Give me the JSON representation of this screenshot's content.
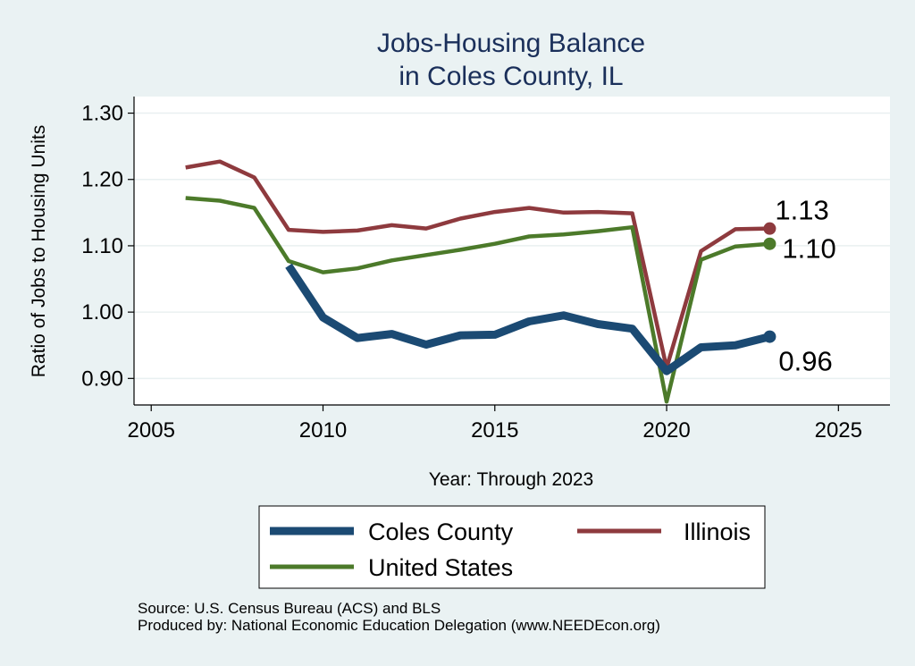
{
  "chart_data": {
    "type": "line",
    "title": [
      "Jobs-Housing Balance",
      "in Coles County, IL"
    ],
    "xlabel": "Year: Through 2023",
    "ylabel": "Ratio of Jobs to Housing Units",
    "xlim": [
      2004.5,
      2026.5
    ],
    "ylim": [
      0.86,
      1.325
    ],
    "xticks": [
      2005,
      2010,
      2015,
      2020,
      2025
    ],
    "yticks": [
      0.9,
      1.0,
      1.1,
      1.2,
      1.3
    ],
    "ytick_labels": [
      "0.90",
      "1.00",
      "1.10",
      "1.20",
      "1.30"
    ],
    "grid": true,
    "legend_position": "bottom",
    "series": [
      {
        "name": "Coles County",
        "color": "#1b4a73",
        "x": [
          2009,
          2010,
          2011,
          2012,
          2013,
          2014,
          2015,
          2016,
          2017,
          2018,
          2019,
          2020,
          2021,
          2022,
          2023
        ],
        "values": [
          1.07,
          0.992,
          0.961,
          0.967,
          0.951,
          0.965,
          0.966,
          0.986,
          0.995,
          0.982,
          0.975,
          0.911,
          0.947,
          0.95,
          0.963
        ],
        "end_label": "0.96"
      },
      {
        "name": "Illinois",
        "color": "#8e3a3e",
        "x": [
          2006,
          2007,
          2008,
          2009,
          2010,
          2011,
          2012,
          2013,
          2014,
          2015,
          2016,
          2017,
          2018,
          2019,
          2020,
          2021,
          2022,
          2023
        ],
        "values": [
          1.218,
          1.227,
          1.203,
          1.124,
          1.121,
          1.123,
          1.131,
          1.126,
          1.141,
          1.151,
          1.157,
          1.15,
          1.151,
          1.149,
          0.916,
          1.092,
          1.125,
          1.126
        ],
        "end_label": "1.13"
      },
      {
        "name": "United States",
        "color": "#4c7a2a",
        "x": [
          2006,
          2007,
          2008,
          2009,
          2010,
          2011,
          2012,
          2013,
          2014,
          2015,
          2016,
          2017,
          2018,
          2019,
          2020,
          2021,
          2022,
          2023
        ],
        "values": [
          1.172,
          1.168,
          1.157,
          1.077,
          1.06,
          1.066,
          1.078,
          1.086,
          1.094,
          1.103,
          1.114,
          1.117,
          1.122,
          1.128,
          0.865,
          1.079,
          1.099,
          1.103
        ],
        "end_label": "1.10"
      }
    ]
  },
  "footer": {
    "source": "Source: U.S. Census Bureau (ACS) and BLS",
    "produced_by": "Produced by: National Economic Education Delegation (www.NEEDEcon.org)"
  }
}
